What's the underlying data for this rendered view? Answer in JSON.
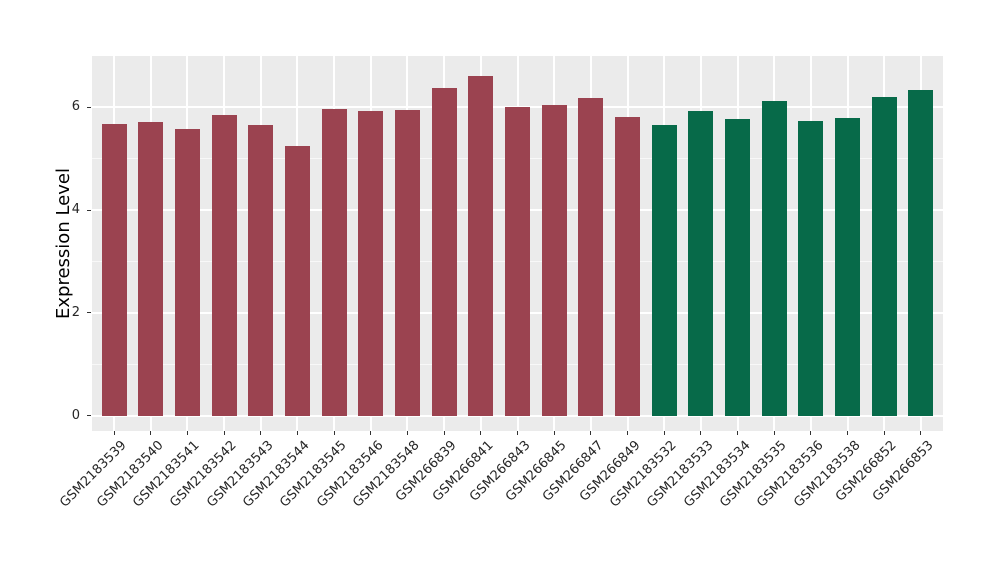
{
  "chart_data": {
    "type": "bar",
    "title": "",
    "xlabel": "",
    "ylabel": "Expression Level",
    "ylim": [
      -0.3,
      7.0
    ],
    "yticks": [
      0,
      2,
      4,
      6
    ],
    "yticks_minor": [
      1,
      3,
      5
    ],
    "grid": true,
    "legend": false,
    "panel_background": "#EBEBEB",
    "grid_color": "#FFFFFF",
    "axis_text_color": "#262626",
    "group_colors": {
      "group1": "#9B4350",
      "group2": "#076A49"
    },
    "bars": [
      {
        "label": "GSM2183539",
        "value": 5.67,
        "group": "group1"
      },
      {
        "label": "GSM2183540",
        "value": 5.71,
        "group": "group1"
      },
      {
        "label": "GSM2183541",
        "value": 5.58,
        "group": "group1"
      },
      {
        "label": "GSM2183542",
        "value": 5.85,
        "group": "group1"
      },
      {
        "label": "GSM2183543",
        "value": 5.65,
        "group": "group1"
      },
      {
        "label": "GSM2183544",
        "value": 5.25,
        "group": "group1"
      },
      {
        "label": "GSM2183545",
        "value": 5.97,
        "group": "group1"
      },
      {
        "label": "GSM2183546",
        "value": 5.92,
        "group": "group1"
      },
      {
        "label": "GSM2183548",
        "value": 5.94,
        "group": "group1"
      },
      {
        "label": "GSM266839",
        "value": 6.38,
        "group": "group1"
      },
      {
        "label": "GSM266841",
        "value": 6.62,
        "group": "group1"
      },
      {
        "label": "GSM266843",
        "value": 6.0,
        "group": "group1"
      },
      {
        "label": "GSM266845",
        "value": 6.05,
        "group": "group1"
      },
      {
        "label": "GSM266847",
        "value": 6.19,
        "group": "group1"
      },
      {
        "label": "GSM266849",
        "value": 5.81,
        "group": "group1"
      },
      {
        "label": "GSM2183532",
        "value": 5.65,
        "group": "group2"
      },
      {
        "label": "GSM2183533",
        "value": 5.93,
        "group": "group2"
      },
      {
        "label": "GSM2183534",
        "value": 5.77,
        "group": "group2"
      },
      {
        "label": "GSM2183535",
        "value": 6.13,
        "group": "group2"
      },
      {
        "label": "GSM2183536",
        "value": 5.74,
        "group": "group2"
      },
      {
        "label": "GSM2183538",
        "value": 5.8,
        "group": "group2"
      },
      {
        "label": "GSM266852",
        "value": 6.21,
        "group": "group2"
      },
      {
        "label": "GSM266853",
        "value": 6.34,
        "group": "group2"
      }
    ]
  }
}
